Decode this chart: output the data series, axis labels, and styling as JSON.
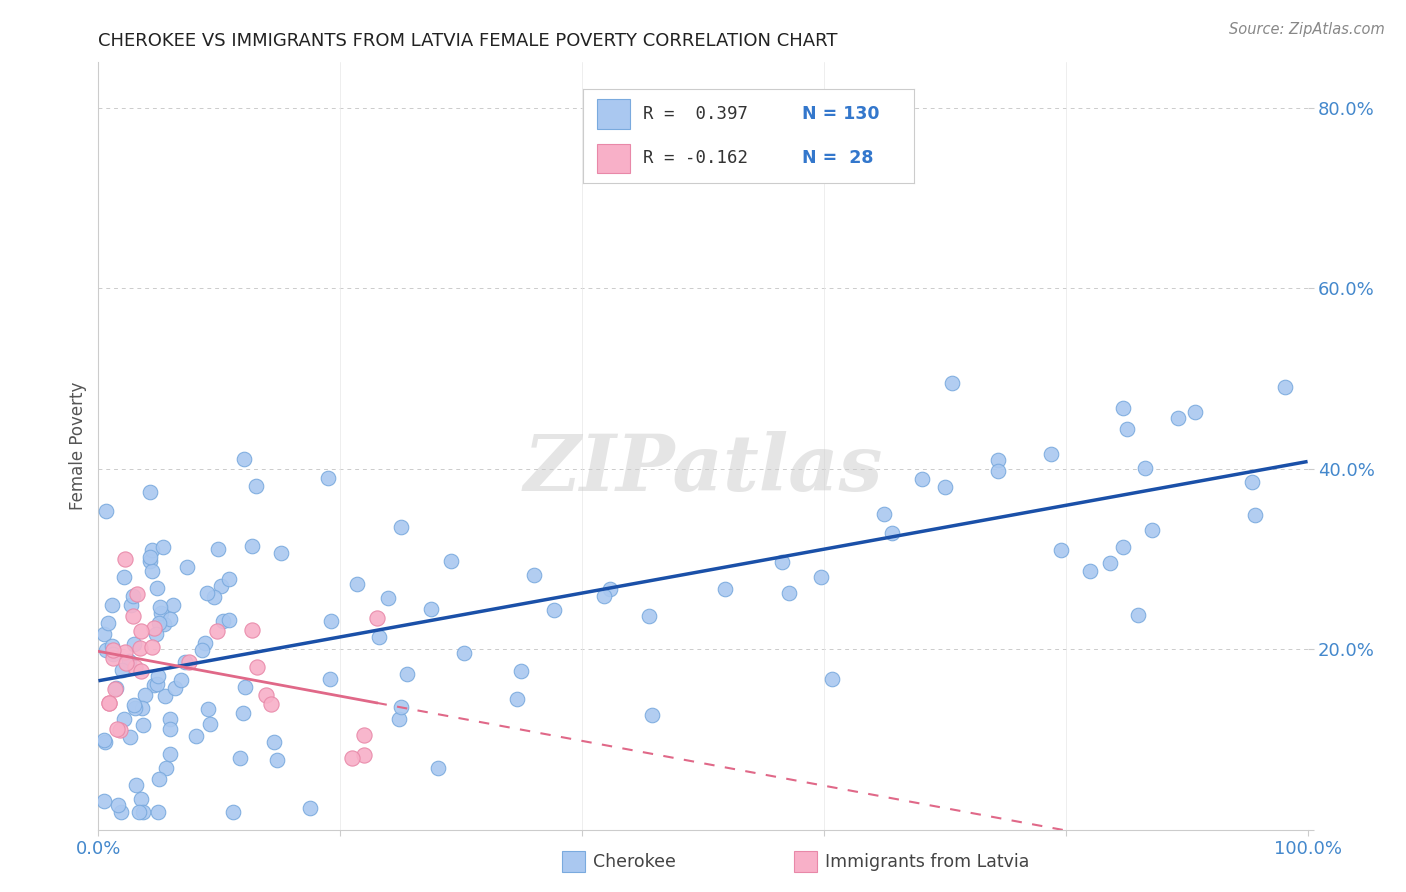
{
  "title": "CHEROKEE VS IMMIGRANTS FROM LATVIA FEMALE POVERTY CORRELATION CHART",
  "source": "Source: ZipAtlas.com",
  "ylabel": "Female Poverty",
  "xlim": [
    0,
    1
  ],
  "ylim": [
    0,
    0.85
  ],
  "xticks": [
    0.0,
    0.2,
    0.4,
    0.6,
    0.8,
    1.0
  ],
  "xticklabels": [
    "0.0%",
    "",
    "",
    "",
    "",
    "100.0%"
  ],
  "yticks": [
    0.0,
    0.2,
    0.4,
    0.6,
    0.8
  ],
  "yticklabels": [
    "",
    "20.0%",
    "40.0%",
    "60.0%",
    "80.0%"
  ],
  "cherokee_color": "#aac8f0",
  "cherokee_edge": "#7aaade",
  "latvia_color": "#f8b0c8",
  "latvia_edge": "#e888a8",
  "cherokee_line_color": "#1a50a8",
  "latvia_line_color": "#e06888",
  "watermark_text": "ZIPatlas",
  "background_color": "#ffffff",
  "grid_color": "#cccccc",
  "tick_color": "#4488cc",
  "title_color": "#222222",
  "source_color": "#888888",
  "ylabel_color": "#555555",
  "legend_R1": "R =  0.397",
  "legend_N1": "N = 130",
  "legend_R2": "R = -0.162",
  "legend_N2": "N =  28"
}
